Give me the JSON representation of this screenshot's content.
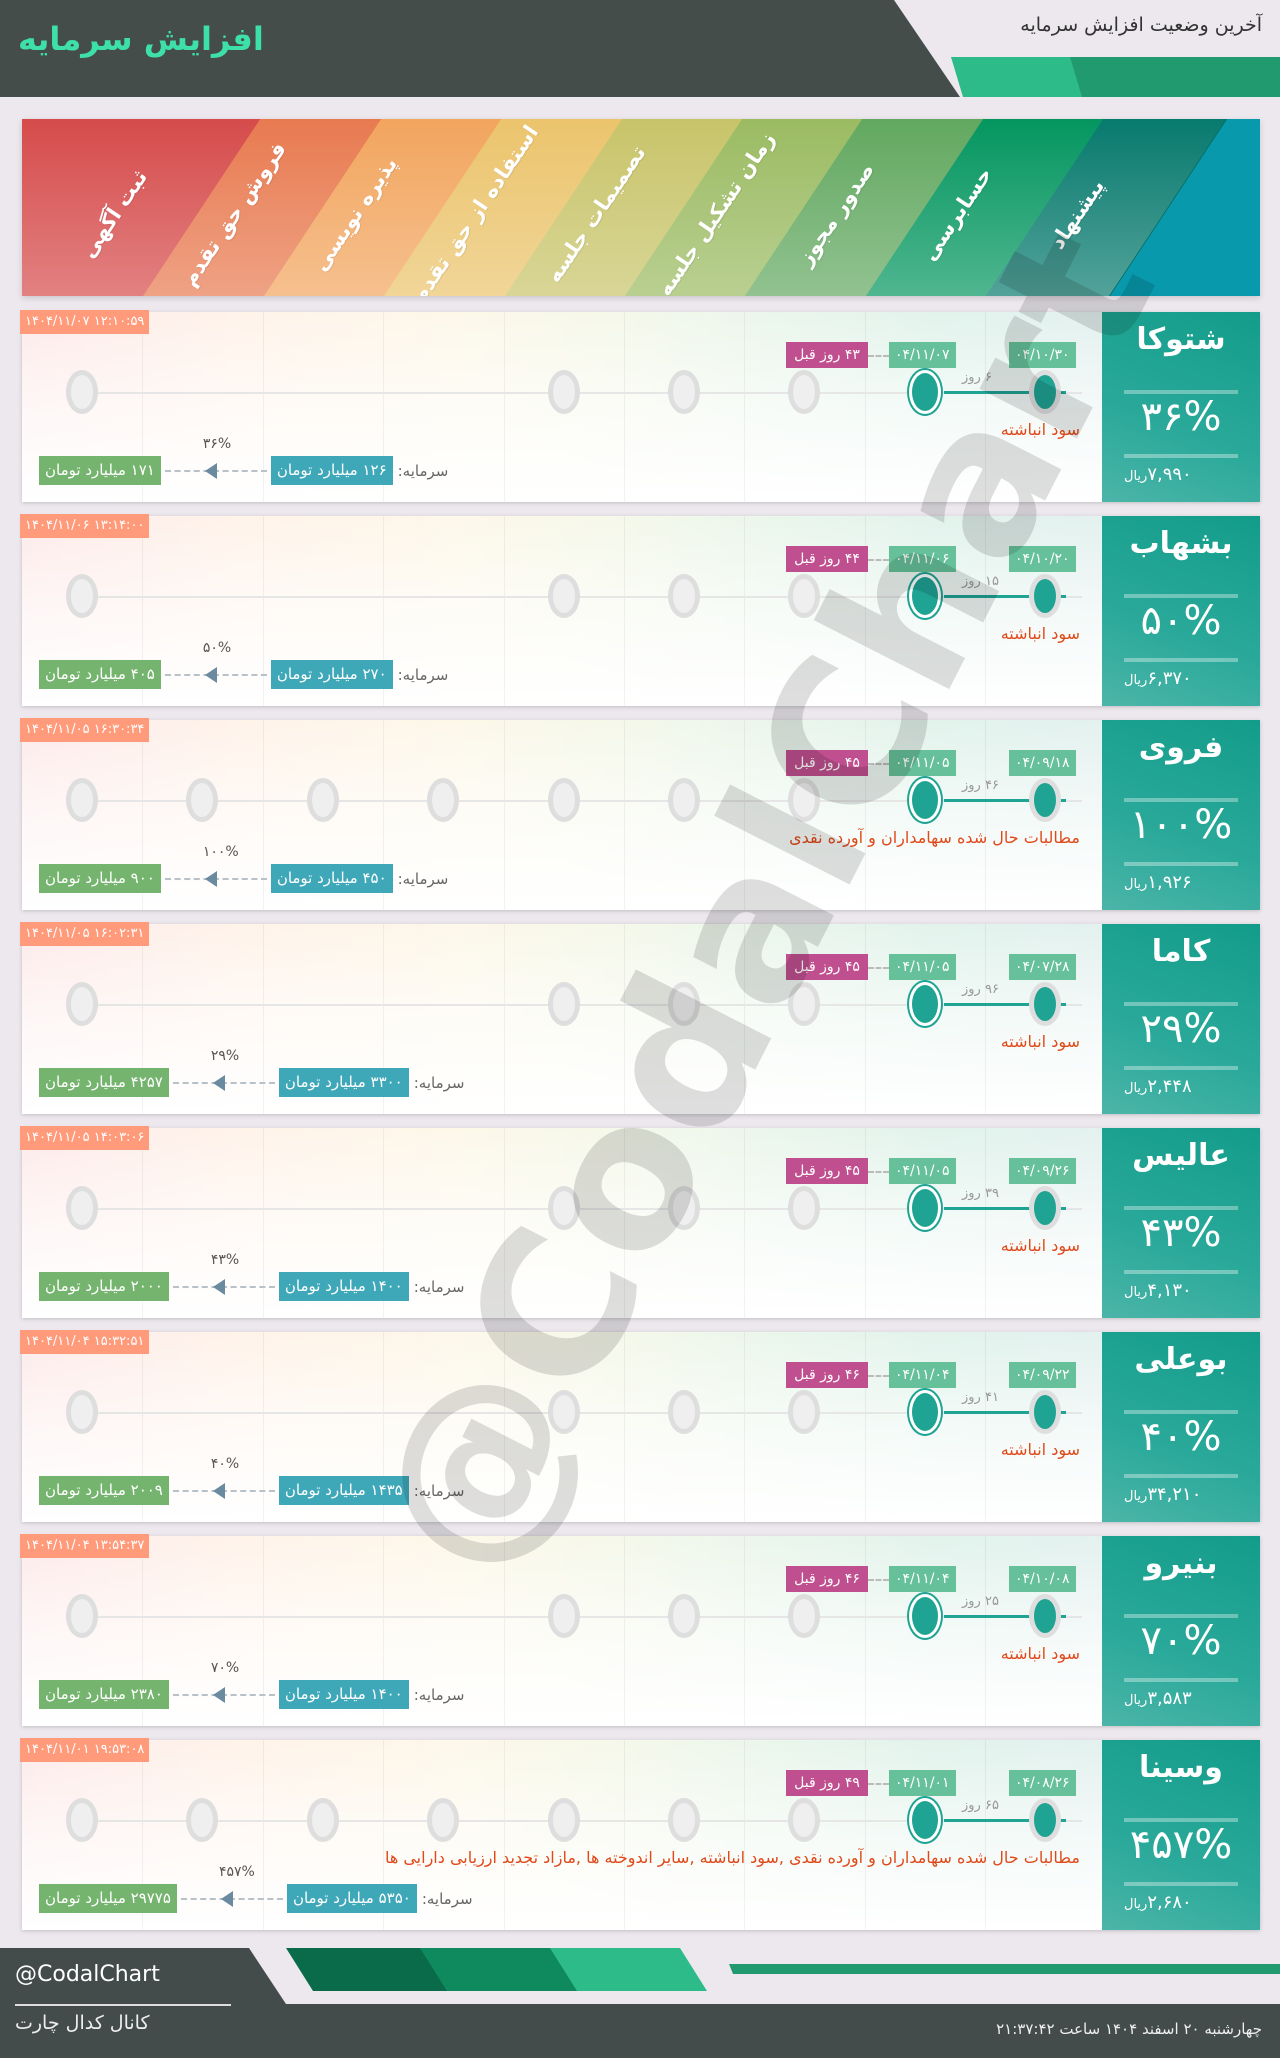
{
  "header": {
    "title": "افزایش سرمایه",
    "subtitle": "آخرین وضعیت افزایش سرمایه"
  },
  "stages": [
    {
      "label": "ثبت آگهی",
      "color": "#d64b4b"
    },
    {
      "label": "فروش حق تقدم",
      "color": "#e87a50"
    },
    {
      "label": "پذیره نویسی",
      "color": "#f2a55e"
    },
    {
      "label": "استفاده از حق تقدم",
      "color": "#ebc46c"
    },
    {
      "label": "تصمیمات جلسه",
      "color": "#c8c46a"
    },
    {
      "label": "زمان تشکیل جلسه",
      "color": "#9bbb62"
    },
    {
      "label": "صدور مجوز",
      "color": "#62a860"
    },
    {
      "label": "حسابرسی",
      "color": "#049660"
    },
    {
      "label": "پیشنهاد",
      "color": "#087a6e"
    }
  ],
  "labels": {
    "capital": "سرمایه:",
    "currency": "ریال"
  },
  "cards": [
    {
      "name": "شتوکا",
      "percent": "۳۶%",
      "price": "۷,۹۹۰",
      "timestamp": "۱۴۰۴/۱۱/۰۷ ۱۲:۱۰:۵۹",
      "proposal_date": "۰۴/۱۰/۳۰",
      "audit_date": "۰۴/۱۱/۰۷",
      "ago": "۴۳ روز قبل",
      "days": "۶ روز",
      "source": "سود انباشته",
      "from": "۱۲۶ میلیارد تومان",
      "to": "۱۷۱ میلیارد تومان",
      "stages": [
        0,
        4,
        5,
        6,
        7,
        8
      ],
      "completed": [
        7,
        8
      ]
    },
    {
      "name": "بشهاب",
      "percent": "۵۰%",
      "price": "۶,۳۷۰",
      "timestamp": "۱۴۰۴/۱۱/۰۶ ۱۳:۱۴:۰۰",
      "proposal_date": "۰۴/۱۰/۲۰",
      "audit_date": "۰۴/۱۱/۰۶",
      "ago": "۴۴ روز قبل",
      "days": "۱۵ روز",
      "source": "سود انباشته",
      "from": "۲۷۰ میلیارد تومان",
      "to": "۴۰۵ میلیارد تومان",
      "stages": [
        0,
        4,
        5,
        6,
        7,
        8
      ],
      "completed": [
        7,
        8
      ]
    },
    {
      "name": "فروی",
      "percent": "۱۰۰%",
      "price": "۱,۹۲۶",
      "timestamp": "۱۴۰۴/۱۱/۰۵ ۱۶:۳۰:۳۴",
      "proposal_date": "۰۴/۰۹/۱۸",
      "audit_date": "۰۴/۱۱/۰۵",
      "ago": "۴۵ روز قبل",
      "days": "۴۶ روز",
      "source": "مطالبات حال شده سهامداران و آورده نقدی",
      "from": "۴۵۰ میلیارد تومان",
      "to": "۹۰۰ میلیارد تومان",
      "stages": [
        0,
        1,
        2,
        3,
        4,
        5,
        6,
        7,
        8
      ],
      "completed": [
        7,
        8
      ]
    },
    {
      "name": "کاما",
      "percent": "۲۹%",
      "price": "۲,۴۴۸",
      "timestamp": "۱۴۰۴/۱۱/۰۵ ۱۶:۰۲:۳۱",
      "proposal_date": "۰۴/۰۷/۲۸",
      "audit_date": "۰۴/۱۱/۰۵",
      "ago": "۴۵ روز قبل",
      "days": "۹۶ روز",
      "source": "سود انباشته",
      "from": "۳۳۰۰ میلیارد تومان",
      "to": "۴۲۵۷ میلیارد تومان",
      "stages": [
        0,
        4,
        5,
        6,
        7,
        8
      ],
      "completed": [
        7,
        8
      ]
    },
    {
      "name": "عالیس",
      "percent": "۴۳%",
      "price": "۴,۱۳۰",
      "timestamp": "۱۴۰۴/۱۱/۰۵ ۱۴:۰۳:۰۶",
      "proposal_date": "۰۴/۰۹/۲۶",
      "audit_date": "۰۴/۱۱/۰۵",
      "ago": "۴۵ روز قبل",
      "days": "۳۹ روز",
      "source": "سود انباشته",
      "from": "۱۴۰۰ میلیارد تومان",
      "to": "۲۰۰۰ میلیارد تومان",
      "stages": [
        0,
        4,
        5,
        6,
        7,
        8
      ],
      "completed": [
        7,
        8
      ]
    },
    {
      "name": "بوعلی",
      "percent": "۴۰%",
      "price": "۳۴,۲۱۰",
      "timestamp": "۱۴۰۴/۱۱/۰۴ ۱۵:۳۲:۵۱",
      "proposal_date": "۰۴/۰۹/۲۲",
      "audit_date": "۰۴/۱۱/۰۴",
      "ago": "۴۶ روز قبل",
      "days": "۴۱ روز",
      "source": "سود انباشته",
      "from": "۱۴۳۵ میلیارد تومان",
      "to": "۲۰۰۹ میلیارد تومان",
      "stages": [
        0,
        4,
        5,
        6,
        7,
        8
      ],
      "completed": [
        7,
        8
      ]
    },
    {
      "name": "بنیرو",
      "percent": "۷۰%",
      "price": "۳,۵۸۳",
      "timestamp": "۱۴۰۴/۱۱/۰۴ ۱۳:۵۴:۳۷",
      "proposal_date": "۰۴/۱۰/۰۸",
      "audit_date": "۰۴/۱۱/۰۴",
      "ago": "۴۶ روز قبل",
      "days": "۲۵ روز",
      "source": "سود انباشته",
      "from": "۱۴۰۰ میلیارد تومان",
      "to": "۲۳۸۰ میلیارد تومان",
      "stages": [
        0,
        4,
        5,
        6,
        7,
        8
      ],
      "completed": [
        7,
        8
      ]
    },
    {
      "name": "وسینا",
      "percent": "۴۵۷%",
      "price": "۲,۶۸۰",
      "timestamp": "۱۴۰۴/۱۱/۰۱ ۱۹:۵۳:۰۸",
      "proposal_date": "۰۴/۰۸/۲۶",
      "audit_date": "۰۴/۱۱/۰۱",
      "ago": "۴۹ روز قبل",
      "days": "۶۵ روز",
      "source": "مطالبات حال شده سهامداران و آورده نقدی ,سود انباشته ,سایر اندوخته ها ,مازاد تجدید ارزیابی دارایی ها",
      "from": "۵۳۵۰ میلیارد تومان",
      "to": "۲۹۷۷۵ میلیارد تومان",
      "stages": [
        0,
        1,
        2,
        3,
        4,
        5,
        6,
        7,
        8
      ],
      "completed": [
        7,
        8
      ]
    }
  ],
  "watermark": "@CodalChart",
  "footer": {
    "handle": "@CodalChart",
    "channel": "کانال کدال چارت",
    "date": "چهارشنبه ۲۰ اسفند ۱۴۰۴ ساعت ۲۱:۳۷:۴۲"
  },
  "colors": {
    "accent": "#1fa393",
    "timestamp": "#ff9a7a",
    "date_badge": "#66c19a",
    "ago_badge": "#bf4f8f",
    "source_text": "#e04a1a",
    "from_box": "#3ea8b8",
    "to_box": "#75b46e",
    "dark": "#454d4a"
  }
}
